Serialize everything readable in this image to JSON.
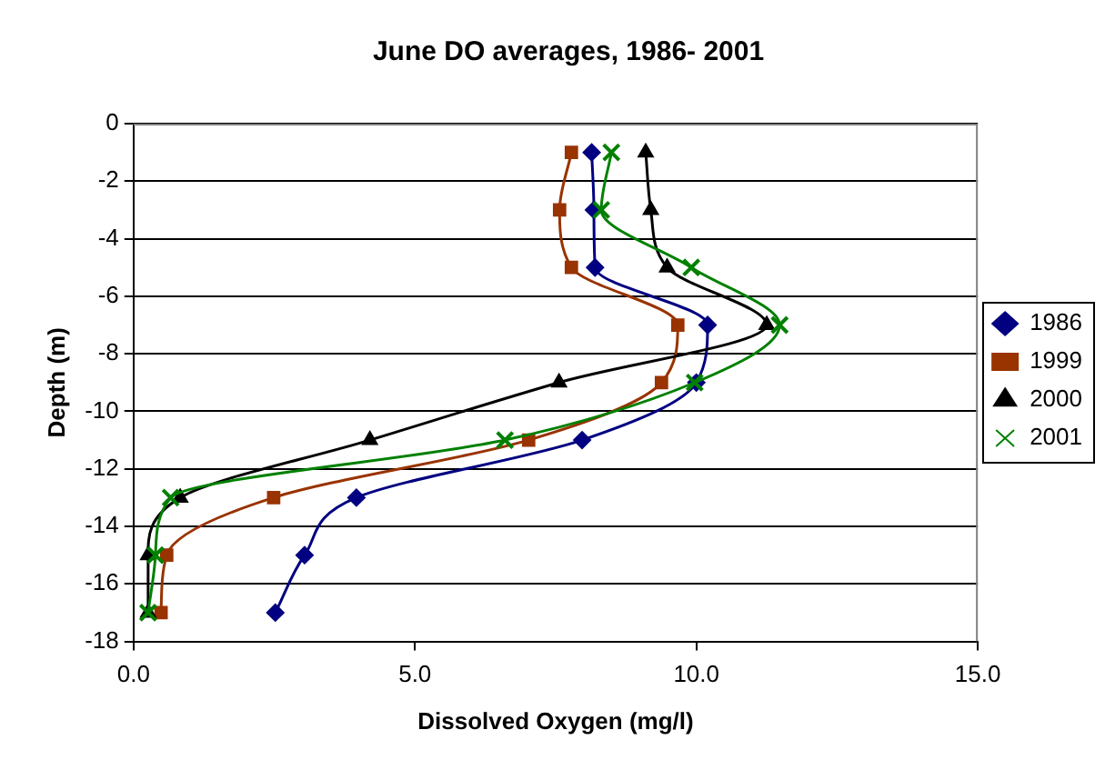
{
  "chart_data": {
    "type": "line",
    "title": "June DO averages, 1986- 2001",
    "xlabel": "Dissolved Oxygen (mg/l)",
    "ylabel": "Depth (m)",
    "xlim": [
      0,
      15
    ],
    "xticks": [
      {
        "value": 0,
        "label": "0.0"
      },
      {
        "value": 5,
        "label": "5.0"
      },
      {
        "value": 10,
        "label": "10.0"
      },
      {
        "value": 15,
        "label": "15.0"
      }
    ],
    "ylim": [
      -18,
      0
    ],
    "yticks": [
      -18,
      -16,
      -14,
      -12,
      -10,
      -8,
      -6,
      -4,
      -2,
      0
    ],
    "grid": "y",
    "legend": "right",
    "series": [
      {
        "name": "1986",
        "color": "#000080",
        "marker": "diamond",
        "x": [
          8.14,
          8.18,
          8.2,
          10.2,
          10.0,
          7.97,
          3.96,
          3.04,
          2.52
        ],
        "values": [
          -1,
          -3,
          -5,
          -7,
          -9,
          -11,
          -13,
          -15,
          -17
        ]
      },
      {
        "name": "1999",
        "color": "#993300",
        "marker": "square",
        "x": [
          7.78,
          7.57,
          7.78,
          9.67,
          9.38,
          7.02,
          2.49,
          0.59,
          0.49
        ],
        "values": [
          -1,
          -3,
          -5,
          -7,
          -9,
          -11,
          -13,
          -15,
          -17
        ]
      },
      {
        "name": "2000",
        "color": "#000000",
        "marker": "triangle",
        "x": [
          9.1,
          9.19,
          9.48,
          11.25,
          7.56,
          4.2,
          0.83,
          0.26,
          0.26
        ],
        "values": [
          -1,
          -3,
          -5,
          -7,
          -9,
          -11,
          -13,
          -15,
          -17
        ]
      },
      {
        "name": "2001",
        "color": "#008000",
        "marker": "cross",
        "x": [
          8.49,
          8.31,
          9.91,
          11.48,
          9.97,
          6.6,
          0.66,
          0.39,
          0.26
        ],
        "values": [
          -1,
          -3,
          -5,
          -7,
          -9,
          -11,
          -13,
          -15,
          -17
        ]
      }
    ]
  }
}
